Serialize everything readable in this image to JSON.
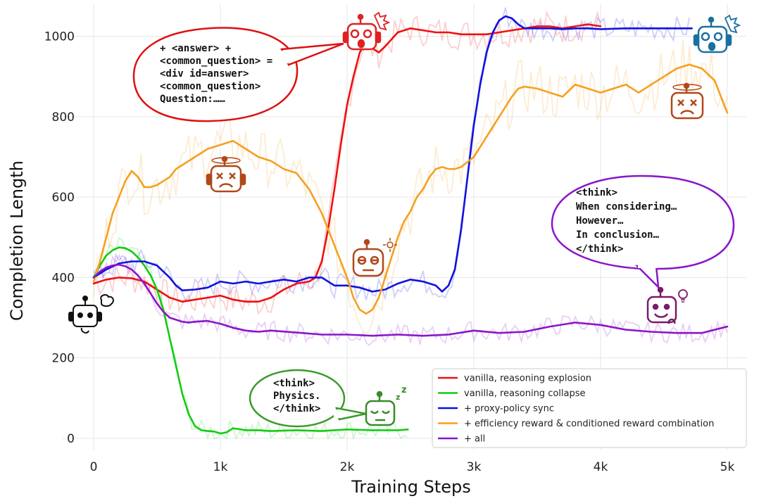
{
  "chart_data": {
    "type": "line",
    "xlabel": "Training Steps",
    "ylabel": "Completion Length",
    "xlim": [
      -250,
      5150
    ],
    "ylim": [
      -30,
      1080
    ],
    "xticks": [
      {
        "v": 0,
        "label": "0"
      },
      {
        "v": 1000,
        "label": "1k"
      },
      {
        "v": 2000,
        "label": "2k"
      },
      {
        "v": 3000,
        "label": "3k"
      },
      {
        "v": 4000,
        "label": "4k"
      },
      {
        "v": 5000,
        "label": "5k"
      }
    ],
    "yticks": [
      {
        "v": 0,
        "label": "0"
      },
      {
        "v": 200,
        "label": "200"
      },
      {
        "v": 400,
        "label": "400"
      },
      {
        "v": 600,
        "label": "600"
      },
      {
        "v": 800,
        "label": "800"
      },
      {
        "v": 1000,
        "label": "1000"
      }
    ],
    "grid": true,
    "legend_position": "bottom-right",
    "series": [
      {
        "name": "vanilla, reasoning explosion",
        "color": "#ee1111",
        "x": [
          0,
          100,
          200,
          300,
          400,
          500,
          600,
          700,
          800,
          900,
          1000,
          1100,
          1200,
          1300,
          1400,
          1500,
          1600,
          1700,
          1750,
          1800,
          1850,
          1900,
          1950,
          2000,
          2050,
          2100,
          2150,
          2200,
          2250,
          2300,
          2400,
          2500,
          2600,
          2700,
          2800,
          2900,
          3000,
          3100,
          3200,
          3300,
          3400,
          3500,
          3600,
          3700,
          3800,
          3900,
          4000
        ],
        "y": [
          385,
          395,
          400,
          398,
          390,
          370,
          350,
          340,
          345,
          350,
          355,
          345,
          340,
          340,
          350,
          370,
          385,
          390,
          400,
          440,
          520,
          620,
          730,
          830,
          900,
          960,
          985,
          970,
          960,
          975,
          1010,
          1020,
          1015,
          1010,
          1010,
          1005,
          1005,
          1005,
          1010,
          1015,
          1020,
          1025,
          1025,
          1020,
          1025,
          1030,
          1025
        ]
      },
      {
        "name": "vanilla, reasoning collapse",
        "color": "#12cc12",
        "x": [
          0,
          50,
          100,
          150,
          200,
          250,
          300,
          350,
          400,
          450,
          500,
          550,
          600,
          650,
          700,
          750,
          800,
          850,
          900,
          950,
          1000,
          1050,
          1100,
          1200,
          1300,
          1400,
          1600,
          1800,
          2000,
          2200,
          2300,
          2400,
          2480
        ],
        "y": [
          400,
          430,
          455,
          468,
          475,
          473,
          465,
          450,
          430,
          405,
          370,
          320,
          250,
          180,
          110,
          60,
          30,
          20,
          18,
          17,
          12,
          15,
          25,
          20,
          20,
          18,
          20,
          18,
          22,
          20,
          20,
          20,
          22
        ]
      },
      {
        "name": "+ proxy-policy sync",
        "color": "#1111dd",
        "x": [
          0,
          100,
          200,
          300,
          400,
          500,
          600,
          650,
          700,
          800,
          900,
          1000,
          1100,
          1200,
          1300,
          1400,
          1500,
          1600,
          1700,
          1800,
          1900,
          2000,
          2100,
          2200,
          2300,
          2400,
          2500,
          2600,
          2700,
          2750,
          2800,
          2850,
          2900,
          2950,
          3000,
          3050,
          3100,
          3150,
          3200,
          3250,
          3300,
          3350,
          3400,
          3450,
          3500,
          3600,
          3700,
          3800,
          3900,
          4000,
          4200,
          4400,
          4600,
          4720
        ],
        "y": [
          400,
          420,
          435,
          440,
          440,
          430,
          400,
          380,
          368,
          370,
          375,
          390,
          385,
          390,
          385,
          390,
          395,
          390,
          400,
          400,
          380,
          380,
          375,
          365,
          370,
          385,
          395,
          390,
          380,
          365,
          380,
          420,
          520,
          650,
          780,
          880,
          960,
          1010,
          1040,
          1050,
          1045,
          1030,
          1020,
          1020,
          1020,
          1020,
          1018,
          1020,
          1020,
          1018,
          1020,
          1020,
          1020,
          1020
        ]
      },
      {
        "name": "+ efficiency reward & conditioned reward combination",
        "color": "#f5a020",
        "x": [
          0,
          50,
          100,
          150,
          200,
          250,
          300,
          350,
          400,
          450,
          500,
          550,
          600,
          650,
          700,
          800,
          900,
          1000,
          1100,
          1200,
          1300,
          1400,
          1500,
          1600,
          1700,
          1800,
          1900,
          2000,
          2050,
          2100,
          2150,
          2200,
          2250,
          2300,
          2350,
          2400,
          2450,
          2500,
          2550,
          2600,
          2650,
          2700,
          2750,
          2800,
          2850,
          2900,
          3000,
          3100,
          3200,
          3300,
          3350,
          3400,
          3500,
          3600,
          3700,
          3800,
          3900,
          4000,
          4100,
          4200,
          4300,
          4400,
          4500,
          4600,
          4700,
          4800,
          4900,
          5000
        ],
        "y": [
          390,
          440,
          500,
          560,
          600,
          640,
          665,
          650,
          625,
          625,
          630,
          640,
          650,
          670,
          680,
          700,
          720,
          730,
          740,
          720,
          700,
          690,
          670,
          660,
          620,
          560,
          480,
          400,
          350,
          320,
          310,
          320,
          350,
          400,
          450,
          500,
          540,
          565,
          600,
          620,
          650,
          670,
          675,
          670,
          670,
          675,
          700,
          750,
          800,
          850,
          870,
          875,
          870,
          860,
          850,
          880,
          870,
          860,
          870,
          880,
          860,
          880,
          900,
          920,
          930,
          920,
          890,
          810
        ]
      },
      {
        "name": "+ all",
        "color": "#8a16c8",
        "x": [
          0,
          50,
          100,
          150,
          200,
          250,
          300,
          350,
          400,
          450,
          500,
          550,
          600,
          650,
          700,
          750,
          800,
          900,
          1000,
          1100,
          1200,
          1300,
          1400,
          1600,
          1800,
          2000,
          2200,
          2400,
          2600,
          2800,
          3000,
          3200,
          3400,
          3600,
          3800,
          4000,
          4200,
          4400,
          4600,
          4800,
          5000
        ],
        "y": [
          400,
          415,
          425,
          430,
          432,
          428,
          420,
          405,
          385,
          360,
          335,
          315,
          300,
          295,
          290,
          288,
          290,
          292,
          285,
          275,
          268,
          265,
          268,
          263,
          258,
          258,
          255,
          258,
          255,
          258,
          268,
          262,
          265,
          278,
          288,
          282,
          270,
          265,
          262,
          262,
          278
        ]
      }
    ]
  },
  "annotations": {
    "explosion_bubble": [
      "+ <answer> +",
      "<common_question> =",
      "<div id=answer>",
      "<common_question>",
      "Question:……"
    ],
    "think_bubble": [
      "<think>",
      "When considering…",
      "However…",
      "In conclusion…",
      "</think>"
    ],
    "collapse_bubble": [
      "<think>",
      "Physics.",
      "</think>"
    ]
  }
}
